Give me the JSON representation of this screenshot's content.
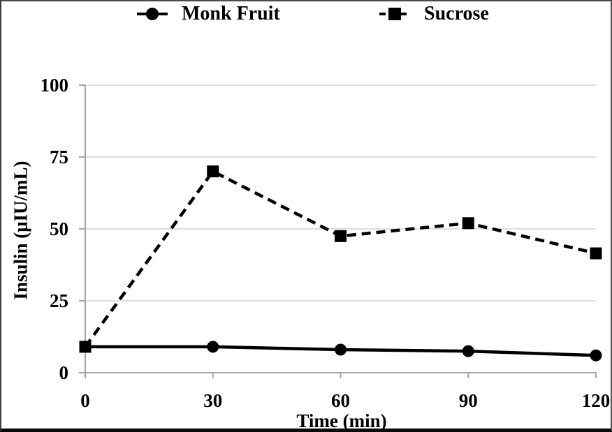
{
  "figure": {
    "background": "#ffffff",
    "border_color": "#4a4a4a",
    "bottom_bar_color": "#0a0a0a"
  },
  "chart_data": {
    "type": "line",
    "title": "",
    "xlabel": "Time (min)",
    "ylabel": "Insulin (μIU/mL)",
    "x": [
      0,
      30,
      60,
      90,
      120
    ],
    "xlim": [
      0,
      120
    ],
    "ylim": [
      0,
      100
    ],
    "xticks": [
      0,
      30,
      60,
      90,
      120
    ],
    "yticks": [
      0,
      25,
      50,
      75,
      100
    ],
    "grid": "horizontal",
    "legend_position": "top-center",
    "axis_color": "#a3a3a3",
    "gridline_color": "#d4d4d4",
    "series": [
      {
        "name": "Monk Fruit",
        "marker": "circle",
        "line_style": "solid",
        "color": "#000000",
        "values": [
          9,
          9,
          8,
          7.5,
          6
        ]
      },
      {
        "name": "Sucrose",
        "marker": "square",
        "line_style": "dashed",
        "color": "#000000",
        "values": [
          9,
          70,
          47.5,
          52,
          41.5
        ]
      }
    ]
  }
}
